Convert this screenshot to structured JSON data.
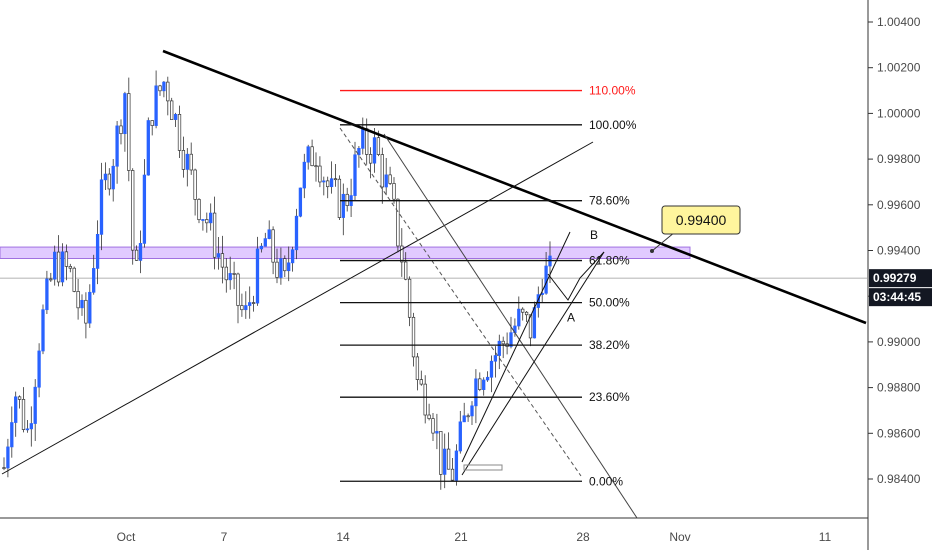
{
  "chart_data": {
    "type": "candlestick",
    "instrument_note": "",
    "y_axis": {
      "range": [
        0.982,
        1.005
      ],
      "tick_labels": [
        "1.00400",
        "1.00200",
        "1.00000",
        "0.99800",
        "0.99600",
        "0.99400",
        "0.99200",
        "0.99000",
        "0.98800",
        "0.98600",
        "0.98400"
      ],
      "tick_values": [
        1.004,
        1.002,
        1.0,
        0.998,
        0.996,
        0.994,
        0.992,
        0.99,
        0.988,
        0.986,
        0.984
      ]
    },
    "x_axis": {
      "tick_labels": [
        "Oct",
        "7",
        "14",
        "21",
        "28",
        "Nov",
        "11"
      ]
    },
    "current_price": {
      "label": "0.99279",
      "value": 0.99279,
      "color": "#131722"
    },
    "countdown": {
      "label": "03:44:45",
      "color": "#131722"
    },
    "price_callout": {
      "label": "0.99400",
      "value": 0.994,
      "fill": "#fff59d",
      "stroke": "#333333"
    },
    "resistance_zone": {
      "low": 0.99365,
      "high": 0.99415,
      "color": "#d7b8ff"
    },
    "fibonacci_levels": [
      {
        "label": "110.00%",
        "value": 1.001,
        "color": "#ff1a1a"
      },
      {
        "label": "100.00%",
        "value": 0.9995,
        "color": "#111111"
      },
      {
        "label": "78.60%",
        "value": 0.99618,
        "color": "#111111"
      },
      {
        "label": "61.80%",
        "value": 0.99356,
        "color": "#111111"
      },
      {
        "label": "50.00%",
        "value": 0.99172,
        "color": "#111111"
      },
      {
        "label": "38.20%",
        "value": 0.98986,
        "color": "#111111"
      },
      {
        "label": "23.60%",
        "value": 0.98758,
        "color": "#111111"
      },
      {
        "label": "0.00%",
        "value": 0.9839,
        "color": "#111111"
      }
    ],
    "wave_labels": [
      {
        "label": "B",
        "value": 0.9945
      },
      {
        "label": "A",
        "value": 0.9909
      }
    ],
    "colors": {
      "up": "#2962ff",
      "down": "#555555",
      "trendline": "#000000"
    },
    "grid": false
  }
}
